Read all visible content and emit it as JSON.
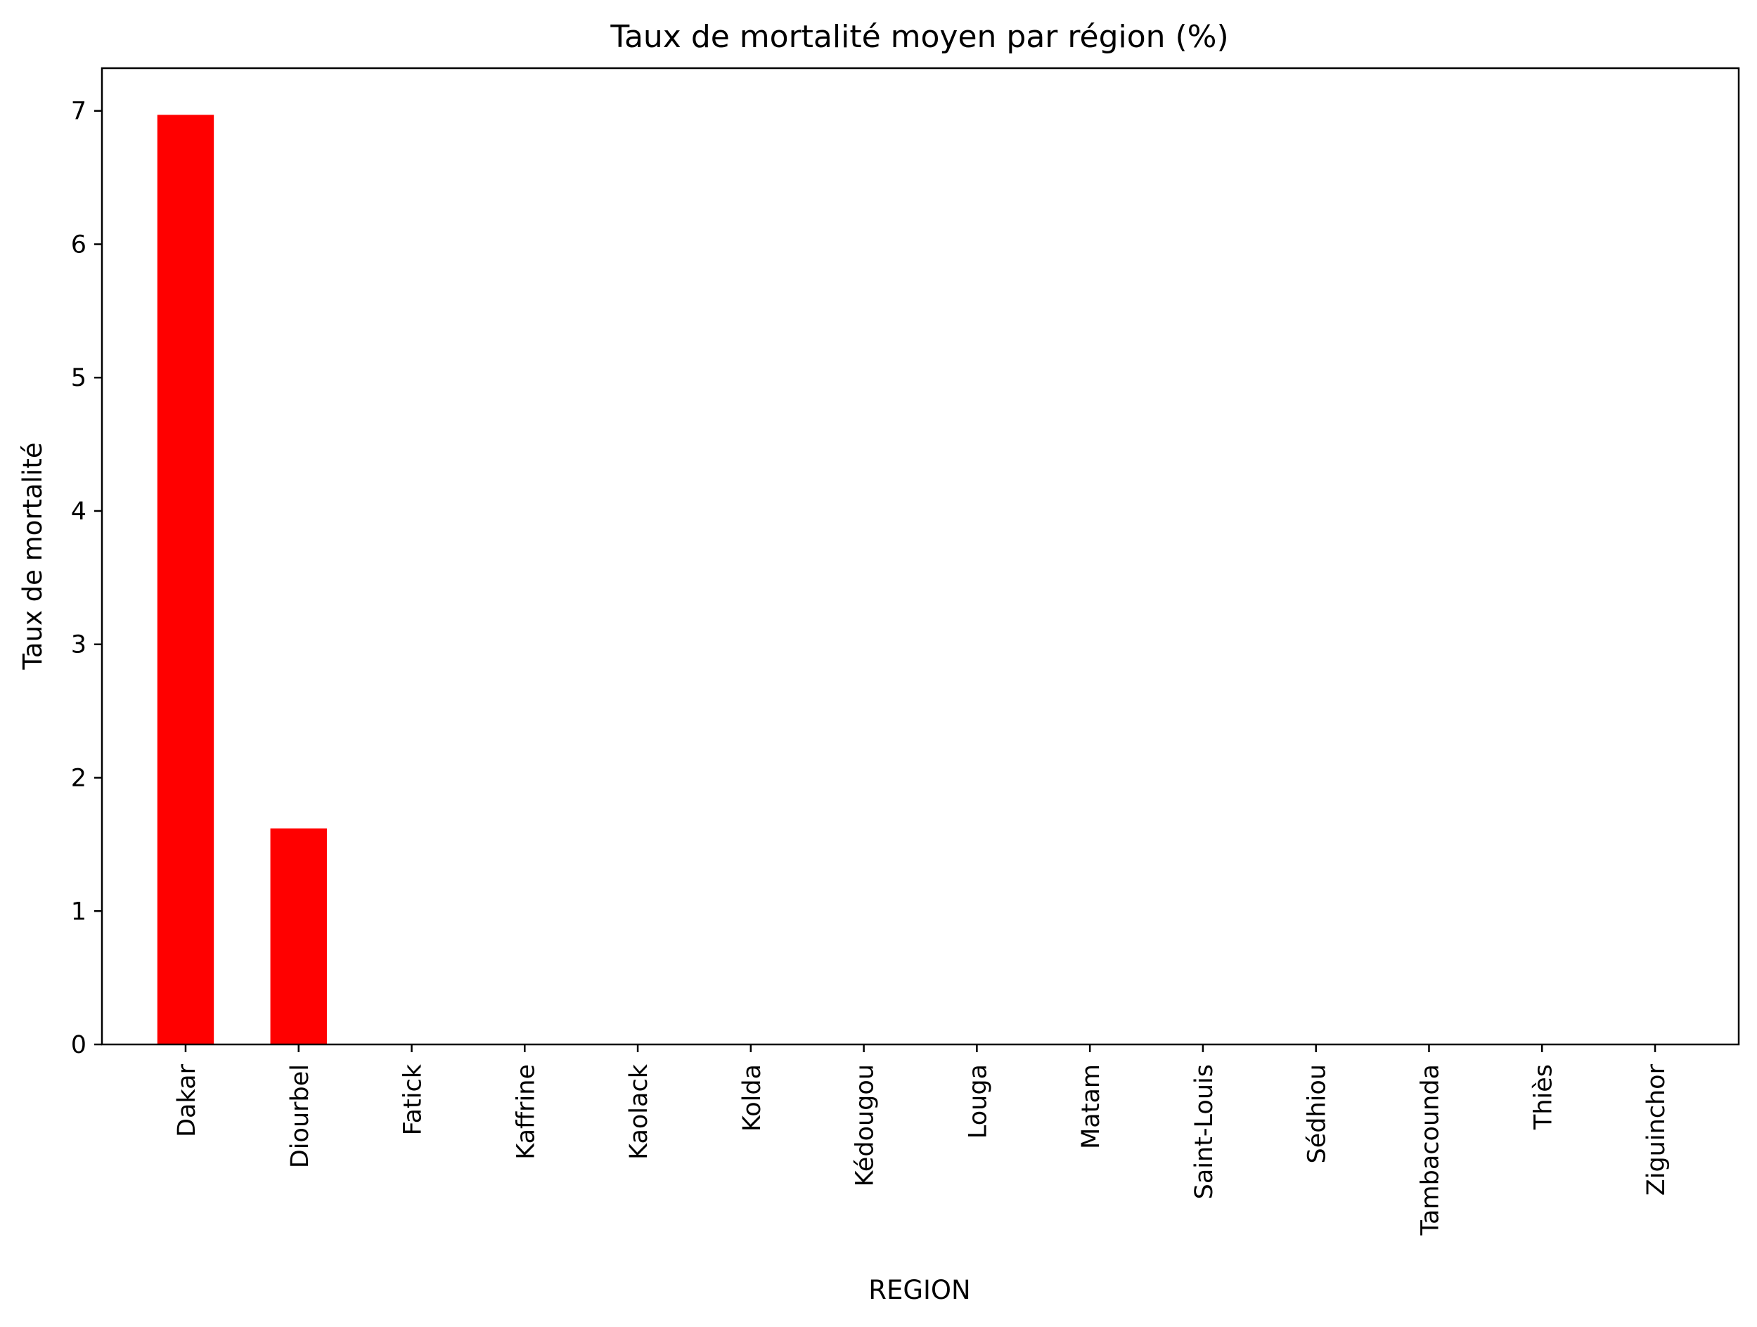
{
  "chart_data": {
    "type": "bar",
    "title": "Taux de mortalité moyen par région (%)",
    "xlabel": "REGION",
    "ylabel": "Taux de mortalité",
    "categories": [
      "Dakar",
      "Diourbel",
      "Fatick",
      "Kaffrine",
      "Kaolack",
      "Kolda",
      "Kédougou",
      "Louga",
      "Matam",
      "Saint-Louis",
      "Sédhiou",
      "Tambacounda",
      "Thiès",
      "Ziguinchor"
    ],
    "values": [
      6.97,
      1.62,
      0,
      0,
      0,
      0,
      0,
      0,
      0,
      0,
      0,
      0,
      0,
      0
    ],
    "ylim": [
      0,
      7.32
    ],
    "yticks": [
      0,
      1,
      2,
      3,
      4,
      5,
      6,
      7
    ],
    "bar_color": "#ff0000",
    "grid": false,
    "legend": false
  }
}
